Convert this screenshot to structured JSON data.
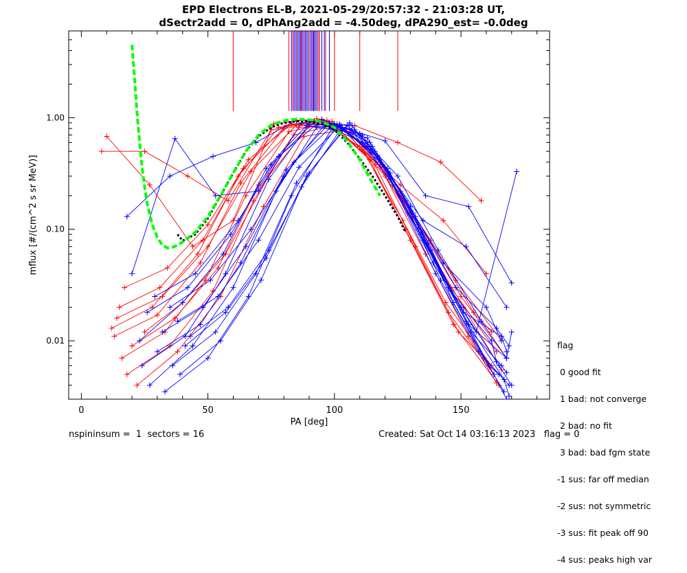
{
  "title": {
    "line1": "EPD Electrons EL-B, 2021-05-29/20:57:32 - 21:03:28 UT,",
    "line2": "dSectr2add = 0, dPhAng2add = -4.50deg, dPA290_est=  -0.0deg"
  },
  "footer": {
    "left": "nspininsum =  1  sectors = 16",
    "right": "Created: Sat Oct 14 03:16:13 2023   flag = 0"
  },
  "legend": {
    "title": "flag",
    "items": [
      " 0 good fit",
      " 1 bad: not converge",
      " 2 bad: no fit",
      " 3 bad: bad fgm state",
      "-1 sus: far off median",
      "-2 sus: not symmetric",
      "-3 sus: fit peak off 90",
      "-4 sus: peaks high var"
    ]
  },
  "colors": {
    "red": "#ff0000",
    "blue": "#0000ff",
    "green": "#00ff00",
    "black": "#000000"
  },
  "chart_data": {
    "type": "line",
    "xlabel": "PA [deg]",
    "ylabel": "mflux [#/(cm^2 s sr MeV)]",
    "xlim": [
      -5,
      185
    ],
    "ylim": [
      0.003,
      6.0
    ],
    "yscale": "log",
    "xticks": [
      0,
      50,
      100,
      150
    ],
    "xtick_labels": [
      "0",
      "50",
      "100",
      "150"
    ],
    "yticks": [
      0.01,
      0.1,
      1.0
    ],
    "ytick_labels": [
      "0.01",
      "0.10",
      "1.00"
    ],
    "green_fit": {
      "x": [
        20,
        21,
        22,
        23,
        24,
        25,
        26,
        28,
        30,
        32,
        34,
        36,
        38,
        40,
        45,
        50,
        55,
        60,
        65,
        70,
        75,
        80,
        85,
        90,
        95,
        100,
        105,
        110,
        115,
        118
      ],
      "y": [
        4.5,
        2.3,
        1.1,
        0.6,
        0.36,
        0.24,
        0.17,
        0.11,
        0.085,
        0.072,
        0.068,
        0.069,
        0.072,
        0.077,
        0.094,
        0.13,
        0.2,
        0.32,
        0.5,
        0.7,
        0.86,
        0.94,
        0.97,
        0.96,
        0.92,
        0.82,
        0.62,
        0.42,
        0.26,
        0.2
      ]
    },
    "black_median": {
      "x": [
        38,
        40,
        45,
        50,
        55,
        60,
        65,
        70,
        75,
        80,
        85,
        90,
        95,
        100,
        105,
        110,
        115,
        120,
        125,
        128
      ],
      "y": [
        0.09,
        0.079,
        0.09,
        0.125,
        0.2,
        0.32,
        0.5,
        0.68,
        0.82,
        0.9,
        0.93,
        0.93,
        0.88,
        0.78,
        0.6,
        0.43,
        0.3,
        0.2,
        0.13,
        0.095
      ]
    },
    "red_sweeps": [
      {
        "x": [
          8,
          25,
          42,
          58,
          75,
          92,
          108,
          125,
          142,
          158
        ],
        "y": [
          0.5,
          0.5,
          0.3,
          0.18,
          0.78,
          0.92,
          0.85,
          0.6,
          0.4,
          0.18
        ]
      },
      {
        "x": [
          10,
          27,
          44,
          60,
          76,
          93,
          110,
          126,
          143,
          160
        ],
        "y": [
          0.68,
          0.25,
          0.07,
          0.12,
          0.88,
          0.98,
          0.55,
          0.25,
          0.12,
          0.04
        ]
      },
      {
        "x": [
          12,
          28,
          46,
          62,
          78,
          95,
          111,
          127,
          144,
          162
        ],
        "y": [
          0.013,
          0.02,
          0.06,
          0.3,
          0.82,
          0.97,
          0.52,
          0.12,
          0.022,
          0.006
        ]
      },
      {
        "x": [
          13,
          30,
          47,
          63,
          80,
          96,
          112,
          128,
          145,
          163
        ],
        "y": [
          0.011,
          0.017,
          0.05,
          0.26,
          0.8,
          0.92,
          0.48,
          0.1,
          0.018,
          0.005
        ]
      },
      {
        "x": [
          15,
          31,
          48,
          64,
          81,
          97,
          113,
          129,
          146,
          164
        ],
        "y": [
          0.02,
          0.03,
          0.08,
          0.35,
          0.85,
          0.95,
          0.55,
          0.14,
          0.03,
          0.008
        ]
      },
      {
        "x": [
          16,
          33,
          49,
          65,
          82,
          98,
          114,
          130,
          147,
          165
        ],
        "y": [
          0.007,
          0.012,
          0.035,
          0.2,
          0.75,
          0.9,
          0.42,
          0.08,
          0.014,
          0.004
        ]
      },
      {
        "x": [
          17,
          34,
          50,
          66,
          83,
          99,
          115,
          131,
          148,
          166
        ],
        "y": [
          0.03,
          0.045,
          0.11,
          0.42,
          0.88,
          0.93,
          0.5,
          0.13,
          0.035,
          0.01
        ]
      },
      {
        "x": [
          18,
          35,
          52,
          68,
          84,
          100,
          116,
          132,
          149,
          167
        ],
        "y": [
          0.005,
          0.009,
          0.028,
          0.18,
          0.7,
          0.86,
          0.38,
          0.07,
          0.012,
          0.0045
        ]
      },
      {
        "x": [
          14,
          32,
          50,
          67,
          85,
          101,
          117,
          133,
          150,
          168
        ],
        "y": [
          0.016,
          0.025,
          0.07,
          0.33,
          0.86,
          0.88,
          0.44,
          0.11,
          0.025,
          0.007
        ]
      },
      {
        "x": [
          20,
          37,
          54,
          70,
          86,
          102,
          118,
          134,
          151,
          166
        ],
        "y": [
          0.009,
          0.016,
          0.045,
          0.25,
          0.82,
          0.84,
          0.36,
          0.09,
          0.02,
          0.0055
        ]
      },
      {
        "x": [
          22,
          38,
          55,
          72,
          88,
          104,
          120,
          136,
          153,
          164
        ],
        "y": [
          0.004,
          0.008,
          0.025,
          0.16,
          0.68,
          0.78,
          0.3,
          0.06,
          0.011,
          0.0042
        ]
      },
      {
        "x": [
          25,
          40,
          57,
          74,
          90,
          106,
          122,
          138,
          155,
          162
        ],
        "y": [
          0.012,
          0.022,
          0.06,
          0.3,
          0.84,
          0.75,
          0.28,
          0.08,
          0.018,
          0.012
        ]
      }
    ],
    "blue_sweeps": [
      {
        "x": [
          20,
          37,
          53,
          70,
          87,
          103,
          120,
          136,
          153,
          170
        ],
        "y": [
          0.04,
          0.65,
          0.2,
          0.22,
          0.9,
          0.82,
          0.62,
          0.2,
          0.16,
          0.033
        ]
      },
      {
        "x": [
          18,
          35,
          52,
          69,
          85,
          102,
          118,
          135,
          152,
          168
        ],
        "y": [
          0.13,
          0.3,
          0.45,
          0.6,
          0.95,
          0.88,
          0.4,
          0.12,
          0.07,
          0.02
        ]
      },
      {
        "x": [
          23,
          40,
          56,
          73,
          89,
          106,
          122,
          139,
          156,
          172
        ],
        "y": [
          0.01,
          0.022,
          0.06,
          0.35,
          0.85,
          0.8,
          0.28,
          0.05,
          0.012,
          0.33
        ]
      },
      {
        "x": [
          24,
          41,
          57,
          74,
          90,
          107,
          123,
          140,
          157,
          169
        ],
        "y": [
          0.006,
          0.011,
          0.04,
          0.28,
          0.88,
          0.85,
          0.25,
          0.04,
          0.008,
          0.004
        ]
      },
      {
        "x": [
          26,
          42,
          59,
          75,
          92,
          108,
          125,
          141,
          158,
          168
        ],
        "y": [
          0.018,
          0.03,
          0.09,
          0.38,
          0.92,
          0.78,
          0.3,
          0.065,
          0.015,
          0.007
        ]
      },
      {
        "x": [
          27,
          44,
          60,
          77,
          93,
          110,
          126,
          142,
          159,
          167
        ],
        "y": [
          0.004,
          0.009,
          0.03,
          0.22,
          0.82,
          0.72,
          0.22,
          0.035,
          0.007,
          0.0035
        ]
      },
      {
        "x": [
          29,
          45,
          62,
          78,
          95,
          111,
          127,
          143,
          160,
          166
        ],
        "y": [
          0.025,
          0.04,
          0.12,
          0.45,
          0.96,
          0.7,
          0.2,
          0.05,
          0.02,
          0.01
        ]
      },
      {
        "x": [
          30,
          47,
          63,
          80,
          96,
          113,
          128,
          145,
          161,
          165
        ],
        "y": [
          0.008,
          0.014,
          0.05,
          0.3,
          0.86,
          0.66,
          0.18,
          0.03,
          0.006,
          0.005
        ]
      },
      {
        "x": [
          32,
          48,
          65,
          81,
          98,
          114,
          130,
          146,
          162,
          164
        ],
        "y": [
          0.012,
          0.02,
          0.07,
          0.34,
          0.9,
          0.6,
          0.16,
          0.028,
          0.01,
          0.0065
        ]
      },
      {
        "x": [
          33,
          50,
          66,
          83,
          99,
          115,
          131,
          147,
          163,
          168
        ],
        "y": [
          0.0035,
          0.007,
          0.025,
          0.2,
          0.8,
          0.55,
          0.14,
          0.022,
          0.005,
          0.003
        ]
      },
      {
        "x": [
          35,
          51,
          67,
          84,
          100,
          116,
          132,
          148,
          164,
          169
        ],
        "y": [
          0.02,
          0.035,
          0.1,
          0.4,
          0.88,
          0.5,
          0.13,
          0.03,
          0.013,
          0.009
        ]
      },
      {
        "x": [
          36,
          53,
          69,
          85,
          101,
          117,
          133,
          150,
          165,
          170
        ],
        "y": [
          0.006,
          0.012,
          0.04,
          0.26,
          0.84,
          0.46,
          0.1,
          0.02,
          0.006,
          0.004
        ]
      },
      {
        "x": [
          38,
          54,
          70,
          86,
          102,
          118,
          134,
          151,
          166,
          168
        ],
        "y": [
          0.015,
          0.025,
          0.08,
          0.36,
          0.85,
          0.42,
          0.09,
          0.018,
          0.011,
          0.008
        ]
      },
      {
        "x": [
          39,
          55,
          71,
          87,
          103,
          119,
          135,
          152,
          167,
          169
        ],
        "y": [
          0.005,
          0.01,
          0.035,
          0.24,
          0.82,
          0.38,
          0.08,
          0.015,
          0.0045,
          0.0032
        ]
      },
      {
        "x": [
          41,
          57,
          73,
          89,
          105,
          121,
          137,
          153,
          168,
          170
        ],
        "y": [
          0.009,
          0.018,
          0.055,
          0.3,
          0.86,
          0.35,
          0.075,
          0.014,
          0.007,
          0.012
        ]
      },
      {
        "x": [
          43,
          58,
          74,
          90,
          106,
          122,
          138,
          154,
          166,
          168
        ],
        "y": [
          0.011,
          0.02,
          0.065,
          0.32,
          0.9,
          0.32,
          0.065,
          0.012,
          0.006,
          0.0052
        ]
      }
    ],
    "spikes": {
      "blue_x": [
        83,
        84,
        85,
        86,
        87,
        88,
        89,
        90,
        91,
        92,
        93,
        94,
        95,
        84.5,
        85.5,
        86.5,
        87.5,
        88.5,
        89.5,
        90.5,
        91.5,
        92.5,
        96,
        98
      ],
      "red_x": [
        60,
        82,
        83.5,
        85,
        86.8,
        88,
        90,
        91.8,
        93.5,
        94,
        96.5,
        100,
        110,
        125
      ],
      "y_bottom": 1.15,
      "y_top": 6.0
    }
  }
}
